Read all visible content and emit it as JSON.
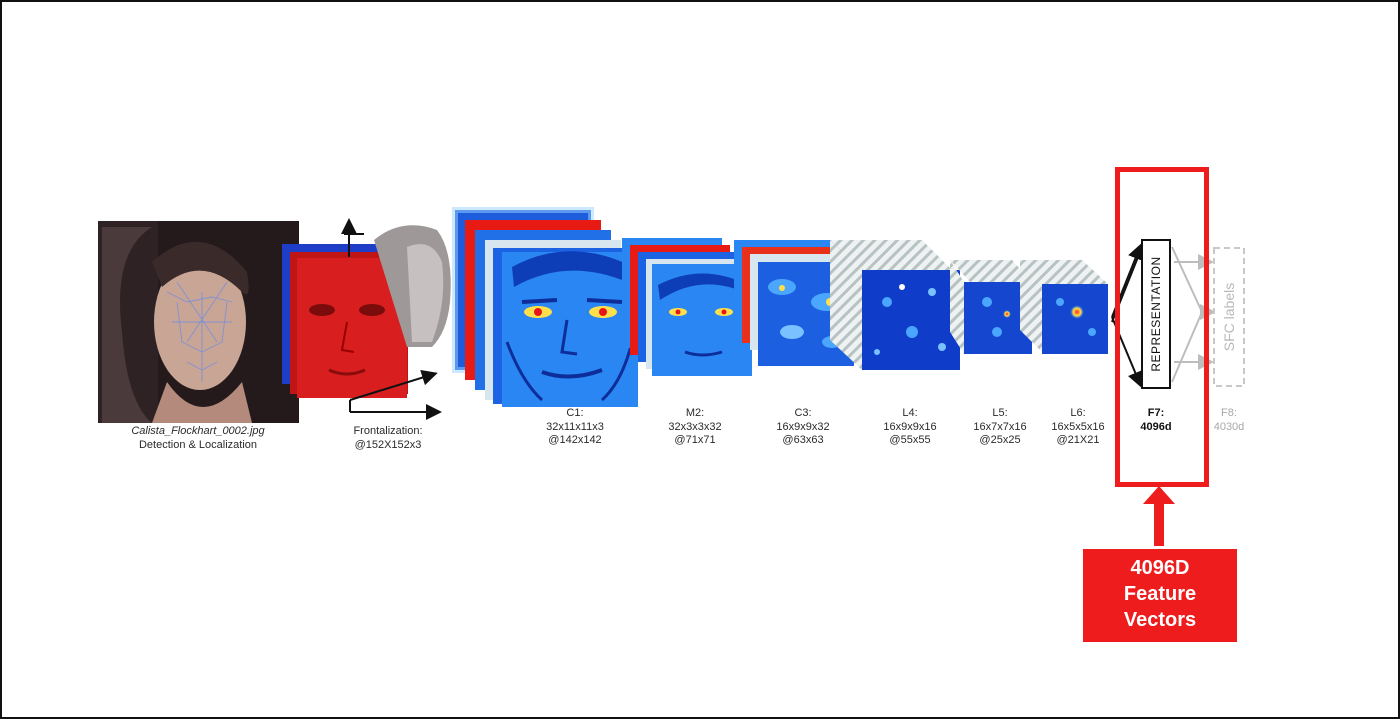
{
  "colors": {
    "callout_red": "#ee1c1c",
    "feature_map_blue": "#1c4fd0",
    "face_red": "#d81e1e"
  },
  "input_stage": {
    "filename": "Calista_Flockhart_0002.jpg",
    "label": "Detection & Localization"
  },
  "frontalization": {
    "line1": "Frontalization:",
    "line2": "@152X152x3"
  },
  "layers": [
    {
      "name": "C1:",
      "kernel": "32x11x11x3",
      "output": "@142x142"
    },
    {
      "name": "M2:",
      "kernel": "32x3x3x32",
      "output": "@71x71"
    },
    {
      "name": "C3:",
      "kernel": "16x9x9x32",
      "output": "@63x63"
    },
    {
      "name": "L4:",
      "kernel": "16x9x9x16",
      "output": "@55x55"
    },
    {
      "name": "L5:",
      "kernel": "16x7x7x16",
      "output": "@25x25"
    },
    {
      "name": "L6:",
      "kernel": "16x5x5x16",
      "output": "@21X21"
    }
  ],
  "f7": {
    "name": "F7:",
    "dim": "4096d",
    "box_label": "REPRESENTATION"
  },
  "f8": {
    "name": "F8:",
    "dim": "4030d",
    "box_label": "SFC labels"
  },
  "callout": {
    "line1": "4096D",
    "line2": "Feature",
    "line3": "Vectors"
  },
  "icons": [
    "face-photo",
    "red-face-crop",
    "3d-face-model",
    "feature-map-stack",
    "up-arrow"
  ]
}
